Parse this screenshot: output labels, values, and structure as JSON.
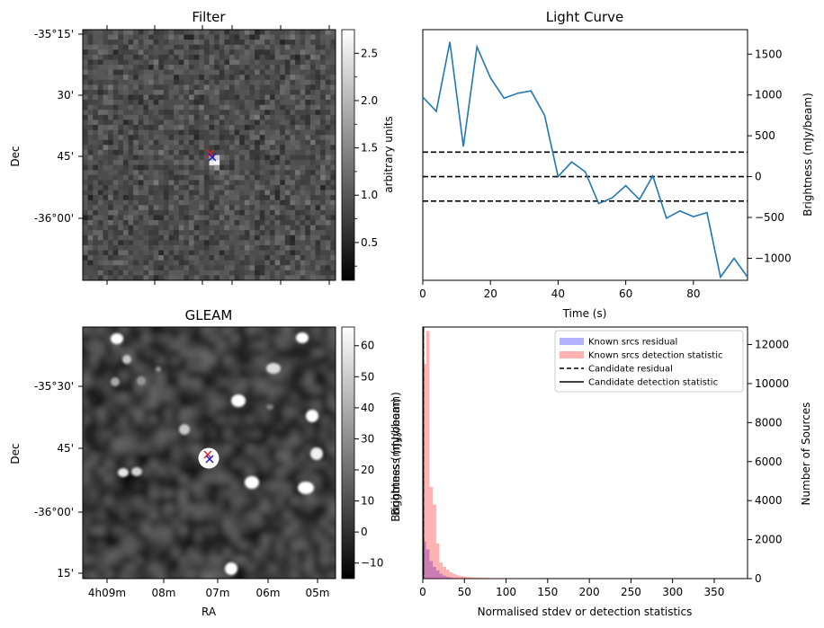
{
  "chart_data": [
    {
      "type": "heatmap",
      "title": "Filter",
      "ylabel": "Dec",
      "yticks": [
        "-35°15'",
        "30'",
        "45'",
        "-36°00'"
      ],
      "colorbar": {
        "label": "arbitrary units",
        "range": [
          0.1,
          2.75
        ],
        "ticks": [
          "0.5",
          "1.0",
          "1.5",
          "2.0",
          "2.5"
        ]
      },
      "markers": [
        {
          "symbol": "x",
          "color": "#e02020"
        },
        {
          "symbol": "x",
          "color": "#1a1acc"
        }
      ],
      "colormap": "gray"
    },
    {
      "type": "line",
      "title": "Light Curve",
      "xlabel": "Time (s)",
      "ylabel": "Brightness (mJy/beam)",
      "xlim": [
        0,
        96
      ],
      "ylim": [
        -1270,
        1800
      ],
      "xticks": [
        0,
        20,
        40,
        60,
        80
      ],
      "yticks": [
        1500,
        1000,
        500,
        0,
        -500,
        -1000
      ],
      "series": [
        {
          "color": "#1f77b4",
          "x": [
            0,
            4,
            8,
            12,
            16,
            20,
            24,
            28,
            32,
            36,
            40,
            44,
            48,
            52,
            56,
            60,
            64,
            68,
            72,
            76,
            80,
            84,
            88,
            92,
            96
          ],
          "y": [
            975,
            800,
            1650,
            370,
            1590,
            1210,
            960,
            1020,
            1050,
            750,
            0,
            180,
            60,
            -330,
            -260,
            -110,
            -280,
            10,
            -510,
            -420,
            -490,
            -440,
            -1230,
            -1000,
            -1230
          ]
        }
      ],
      "hlines": [
        {
          "y": 300,
          "style": "dashed"
        },
        {
          "y": 0,
          "style": "dashed"
        },
        {
          "y": -300,
          "style": "dashed"
        }
      ]
    },
    {
      "type": "heatmap",
      "title": "GLEAM",
      "xlabel": "RA",
      "ylabel": "Dec",
      "yticks": [
        "-35°30'",
        "45'",
        "-36°00'",
        "15'"
      ],
      "xticks": [
        "4h09m",
        "08m",
        "07m",
        "06m",
        "05m"
      ],
      "colorbar": {
        "label": "Brightness (mJy/beam)",
        "range": [
          -15,
          66
        ],
        "ticks": [
          "60",
          "50",
          "40",
          "30",
          "20",
          "10",
          "0",
          "−10"
        ]
      },
      "markers": [
        {
          "symbol": "x",
          "color": "#e02020"
        },
        {
          "symbol": "x",
          "color": "#1a1acc"
        }
      ],
      "colormap": "gray"
    },
    {
      "type": "bar",
      "xlabel": "Normalised stdev or detection statistics",
      "ylabel": "Number of Sources",
      "left_label": "Brightness (mJy/beam)",
      "xlim": [
        0,
        390
      ],
      "ylim": [
        0,
        12900
      ],
      "xticks": [
        0,
        50,
        100,
        150,
        200,
        250,
        300,
        350
      ],
      "yticks": [
        0,
        2000,
        4000,
        6000,
        8000,
        10000,
        12000
      ],
      "bin_width": 4,
      "series": [
        {
          "name": "Known srcs residual",
          "color": "#0000ff",
          "alpha": 0.3,
          "bin_starts": [
            0,
            4,
            8,
            12,
            16,
            20,
            24,
            28,
            32,
            36
          ],
          "values": [
            1900,
            1500,
            900,
            600,
            420,
            250,
            150,
            90,
            50,
            30
          ]
        },
        {
          "name": "Known srcs detection statistic",
          "color": "#ff0000",
          "alpha": 0.3,
          "bin_starts": [
            0,
            4,
            8,
            12,
            16,
            20,
            24,
            28,
            32,
            36,
            40,
            44,
            48,
            52,
            56,
            60,
            64,
            68,
            72,
            76,
            80,
            84,
            88,
            92,
            96,
            100,
            104,
            108,
            112,
            116,
            120,
            124,
            128,
            132,
            136,
            140,
            144,
            148
          ],
          "values": [
            11000,
            12700,
            4700,
            3800,
            1800,
            820,
            600,
            450,
            320,
            230,
            170,
            130,
            100,
            80,
            65,
            55,
            45,
            40,
            35,
            30,
            25,
            22,
            20,
            18,
            15,
            13,
            11,
            10,
            9,
            8,
            7,
            6,
            5,
            5,
            4,
            4,
            3,
            3
          ]
        }
      ],
      "vlines": [
        {
          "name": "Candidate residual",
          "x": 0,
          "style": "dashed"
        },
        {
          "name": "Candidate detection statistic",
          "x": 0,
          "style": "solid"
        }
      ],
      "legend": "top-right"
    }
  ]
}
